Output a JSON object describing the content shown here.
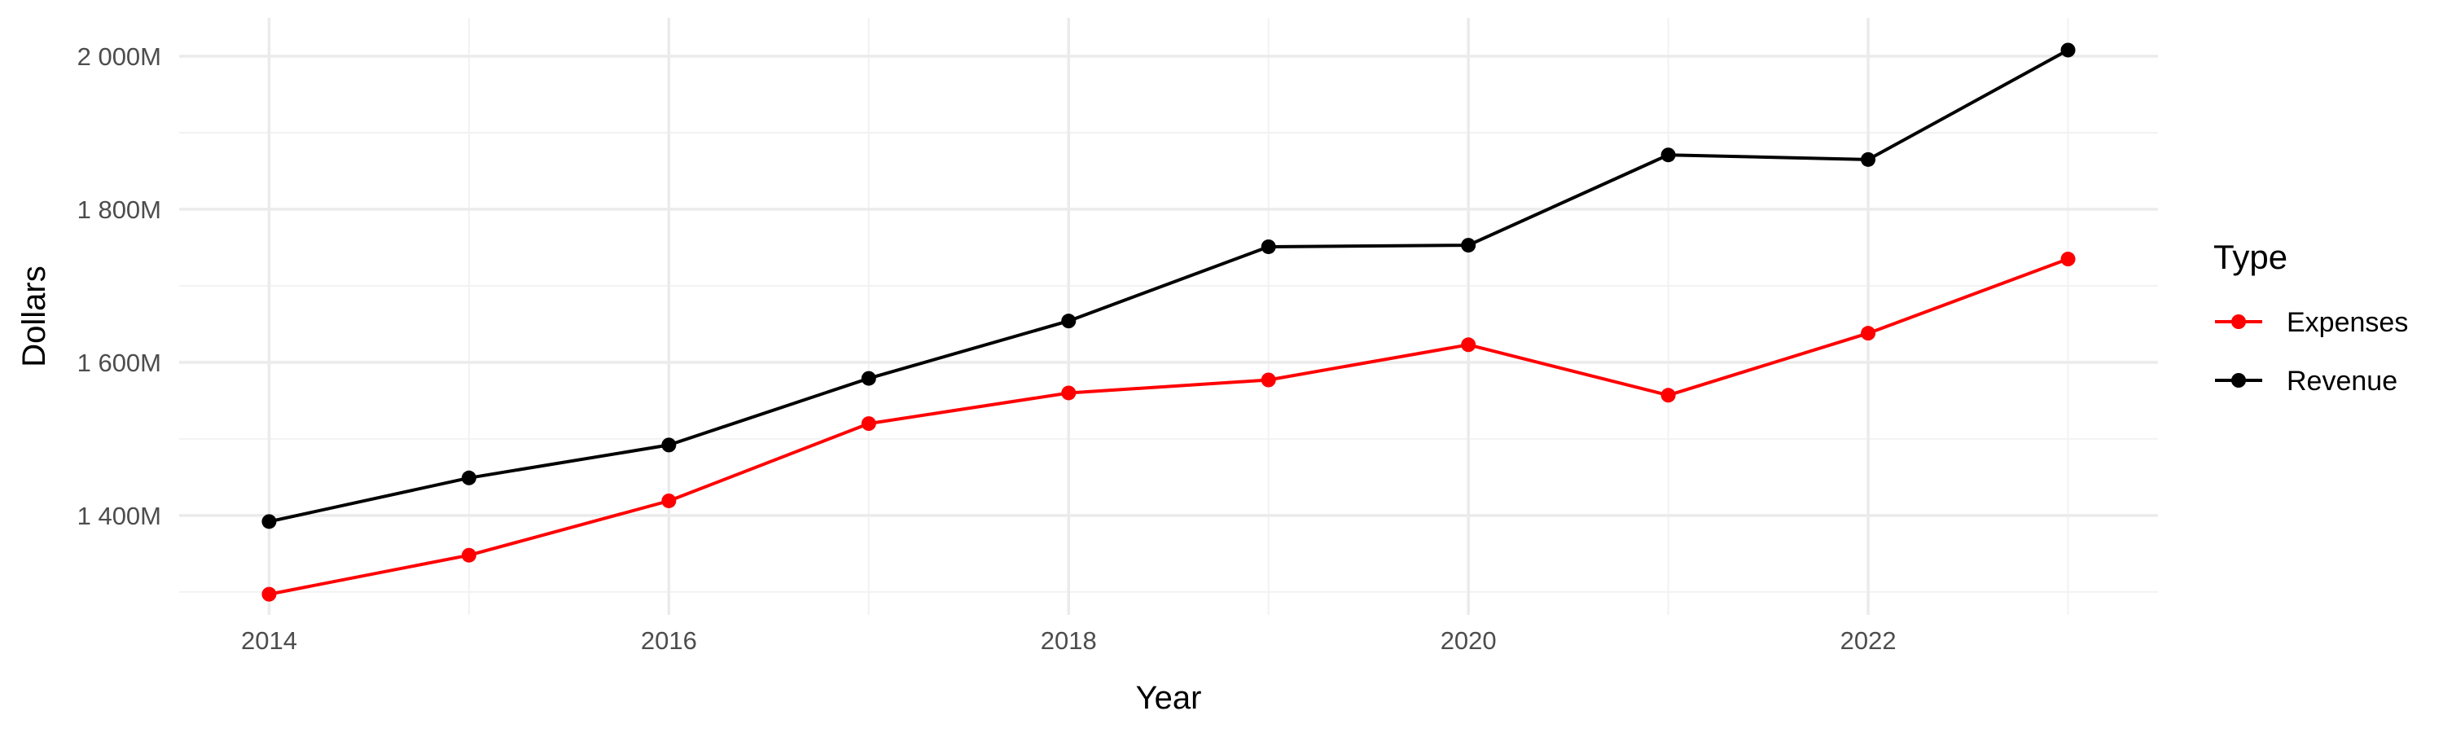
{
  "chart_data": {
    "type": "line",
    "title": "",
    "xlabel": "Year",
    "ylabel": "Dollars",
    "x": [
      2014,
      2015,
      2016,
      2017,
      2018,
      2019,
      2020,
      2021,
      2022,
      2023
    ],
    "xlim": [
      2013.55,
      2023.45
    ],
    "ylim": [
      1270,
      2050
    ],
    "x_ticks": [
      2014,
      2016,
      2018,
      2020,
      2022
    ],
    "x_tick_labels": [
      "2014",
      "2016",
      "2018",
      "2020",
      "2022"
    ],
    "y_ticks": [
      1400,
      1600,
      1800,
      2000
    ],
    "y_tick_labels": [
      "1 400M",
      "1 600M",
      "1 800M",
      "2 000M"
    ],
    "grid": true,
    "legend": {
      "title": "Type",
      "placement": "right",
      "entries": [
        "Expenses",
        "Revenue"
      ]
    },
    "series": [
      {
        "name": "Expenses",
        "color": "#ff0000",
        "values": [
          1297,
          1348,
          1419,
          1520,
          1560,
          1577,
          1623,
          1557,
          1638,
          1735
        ]
      },
      {
        "name": "Revenue",
        "color": "#000000",
        "values": [
          1392,
          1449,
          1492,
          1579,
          1654,
          1751,
          1753,
          1871,
          1865,
          2008
        ]
      }
    ]
  }
}
